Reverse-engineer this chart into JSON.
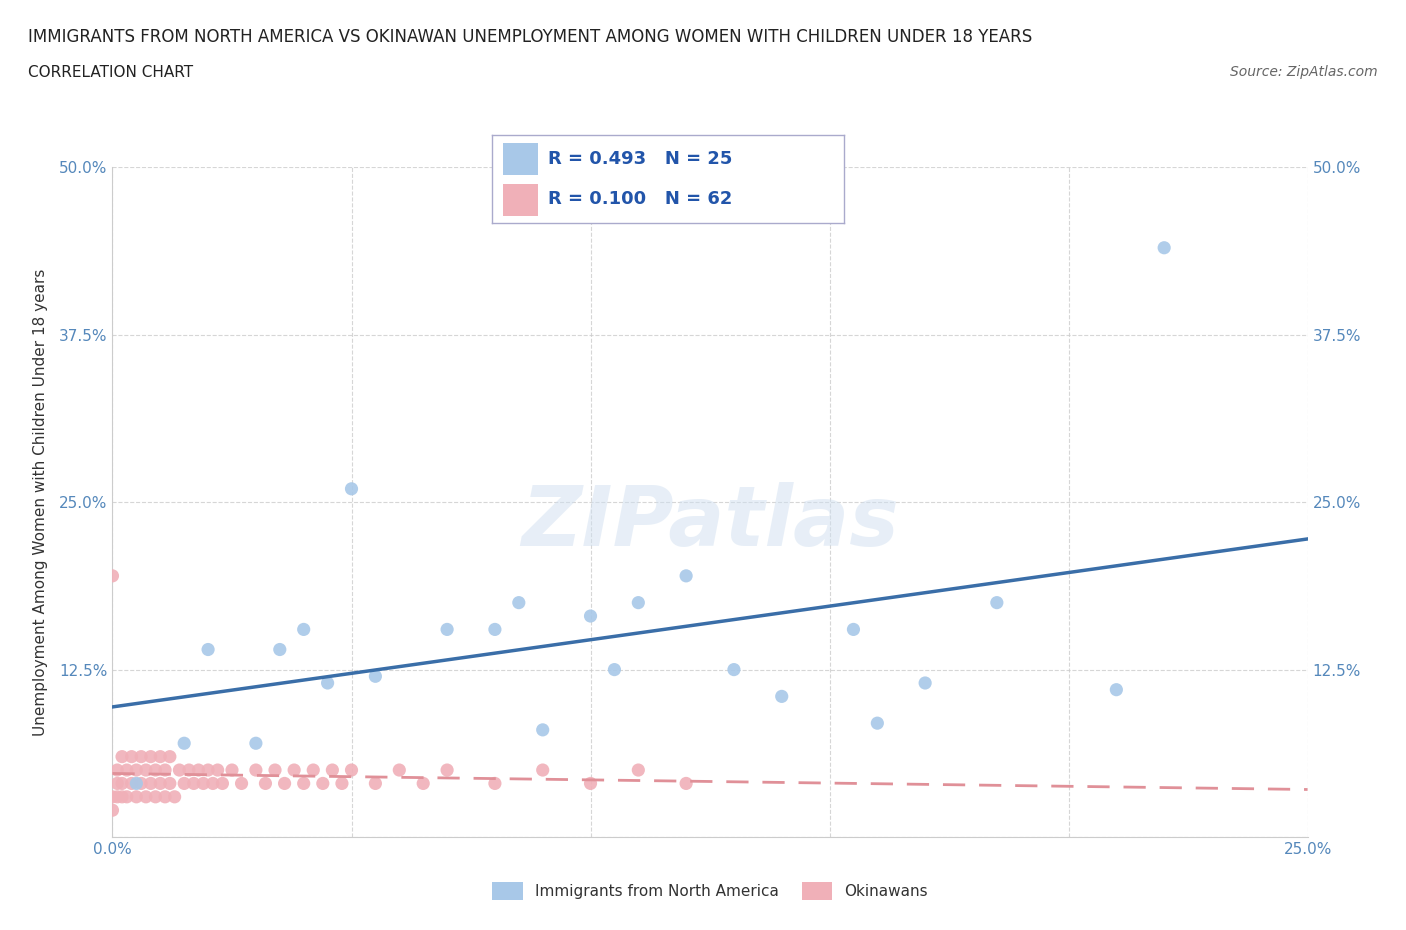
{
  "title": "IMMIGRANTS FROM NORTH AMERICA VS OKINAWAN UNEMPLOYMENT AMONG WOMEN WITH CHILDREN UNDER 18 YEARS",
  "subtitle": "CORRELATION CHART",
  "source": "Source: ZipAtlas.com",
  "ylabel": "Unemployment Among Women with Children Under 18 years",
  "xlim": [
    0,
    0.25
  ],
  "ylim": [
    0,
    0.5
  ],
  "xticks": [
    0.0,
    0.05,
    0.1,
    0.15,
    0.2,
    0.25
  ],
  "yticks": [
    0.0,
    0.125,
    0.25,
    0.375,
    0.5
  ],
  "xtick_labels": [
    "0.0%",
    "",
    "",
    "",
    "",
    "25.0%"
  ],
  "ytick_labels": [
    "",
    "12.5%",
    "25.0%",
    "37.5%",
    "50.0%"
  ],
  "blue_R": 0.493,
  "blue_N": 25,
  "pink_R": 0.1,
  "pink_N": 62,
  "blue_color": "#a8c8e8",
  "pink_color": "#f0b0b8",
  "blue_line_color": "#3a6ea8",
  "pink_line_color": "#e09098",
  "watermark": "ZIPatlas",
  "blue_scatter_x": [
    0.005,
    0.015,
    0.02,
    0.03,
    0.035,
    0.04,
    0.045,
    0.05,
    0.055,
    0.07,
    0.08,
    0.085,
    0.09,
    0.1,
    0.105,
    0.11,
    0.12,
    0.13,
    0.14,
    0.155,
    0.16,
    0.17,
    0.185,
    0.21,
    0.22
  ],
  "blue_scatter_y": [
    0.04,
    0.07,
    0.14,
    0.07,
    0.14,
    0.155,
    0.115,
    0.26,
    0.12,
    0.155,
    0.155,
    0.175,
    0.08,
    0.165,
    0.125,
    0.175,
    0.195,
    0.125,
    0.105,
    0.155,
    0.085,
    0.115,
    0.175,
    0.11,
    0.44
  ],
  "pink_scatter_x": [
    0.0,
    0.001,
    0.001,
    0.002,
    0.002,
    0.003,
    0.003,
    0.004,
    0.004,
    0.005,
    0.005,
    0.006,
    0.006,
    0.007,
    0.007,
    0.008,
    0.008,
    0.009,
    0.009,
    0.01,
    0.01,
    0.011,
    0.011,
    0.012,
    0.012,
    0.013,
    0.014,
    0.015,
    0.016,
    0.017,
    0.018,
    0.019,
    0.02,
    0.021,
    0.022,
    0.023,
    0.025,
    0.027,
    0.03,
    0.032,
    0.034,
    0.036,
    0.038,
    0.04,
    0.042,
    0.044,
    0.046,
    0.048,
    0.05,
    0.055,
    0.06,
    0.065,
    0.07,
    0.08,
    0.09,
    0.1,
    0.11,
    0.12,
    0.0,
    0.001,
    0.002,
    0.0
  ],
  "pink_scatter_y": [
    0.195,
    0.03,
    0.05,
    0.04,
    0.06,
    0.03,
    0.05,
    0.04,
    0.06,
    0.03,
    0.05,
    0.04,
    0.06,
    0.03,
    0.05,
    0.04,
    0.06,
    0.03,
    0.05,
    0.04,
    0.06,
    0.03,
    0.05,
    0.04,
    0.06,
    0.03,
    0.05,
    0.04,
    0.05,
    0.04,
    0.05,
    0.04,
    0.05,
    0.04,
    0.05,
    0.04,
    0.05,
    0.04,
    0.05,
    0.04,
    0.05,
    0.04,
    0.05,
    0.04,
    0.05,
    0.04,
    0.05,
    0.04,
    0.05,
    0.04,
    0.05,
    0.04,
    0.05,
    0.04,
    0.05,
    0.04,
    0.05,
    0.04,
    0.03,
    0.04,
    0.03,
    0.02
  ]
}
